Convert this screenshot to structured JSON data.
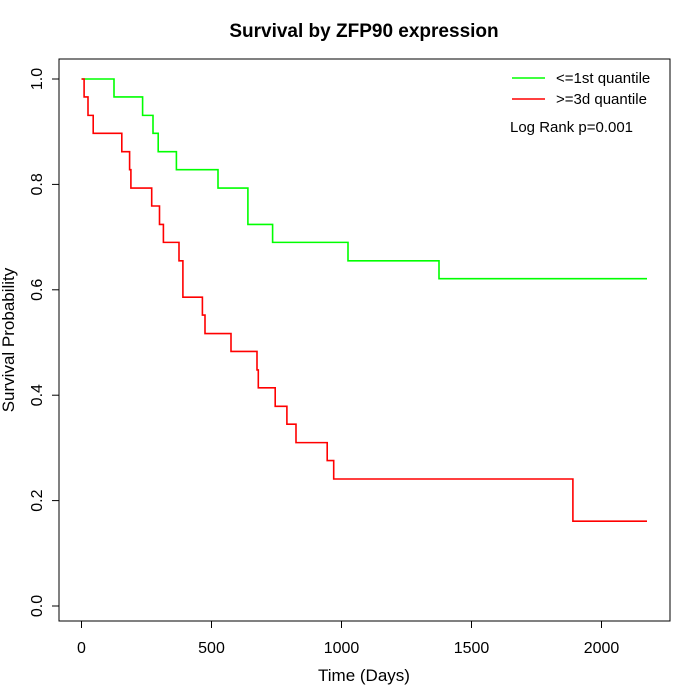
{
  "chart_data": {
    "type": "line",
    "subtype": "kaplan-meier step",
    "title": "Survival by ZFP90 expression",
    "xlabel": "Time (Days)",
    "ylabel": "Survival Probability",
    "xlim": [
      0,
      2250
    ],
    "ylim": [
      -0.04,
      1.04
    ],
    "x_ticks": [
      0,
      500,
      1000,
      1500,
      2000
    ],
    "y_ticks": [
      0.0,
      0.2,
      0.4,
      0.6,
      0.8,
      1.0
    ],
    "x_tick_labels": [
      "0",
      "500",
      "1000",
      "1500",
      "2000"
    ],
    "y_tick_labels": [
      "0.0",
      "0.2",
      "0.4",
      "0.6",
      "0.8",
      "1.0"
    ],
    "grid": false,
    "legend_position": "top-right",
    "annotation": "Log Rank p=0.001",
    "series": [
      {
        "name": "<=1st quantile",
        "color": "#00ff00",
        "x": [
          0,
          125,
          235,
          275,
          295,
          365,
          525,
          640,
          735,
          1025,
          1375,
          2175
        ],
        "y": [
          1.0,
          0.966,
          0.931,
          0.897,
          0.862,
          0.828,
          0.793,
          0.724,
          0.69,
          0.655,
          0.621,
          0.621
        ]
      },
      {
        "name": ">=3d quantile",
        "color": "#ff0000",
        "x": [
          0,
          10,
          25,
          45,
          155,
          185,
          190,
          270,
          300,
          315,
          375,
          390,
          465,
          475,
          575,
          675,
          680,
          745,
          790,
          825,
          945,
          970,
          1890,
          2175
        ],
        "y": [
          1.0,
          0.966,
          0.931,
          0.897,
          0.862,
          0.828,
          0.793,
          0.759,
          0.724,
          0.69,
          0.655,
          0.586,
          0.552,
          0.517,
          0.483,
          0.448,
          0.414,
          0.379,
          0.345,
          0.31,
          0.276,
          0.241,
          0.161,
          0.161
        ]
      }
    ]
  }
}
